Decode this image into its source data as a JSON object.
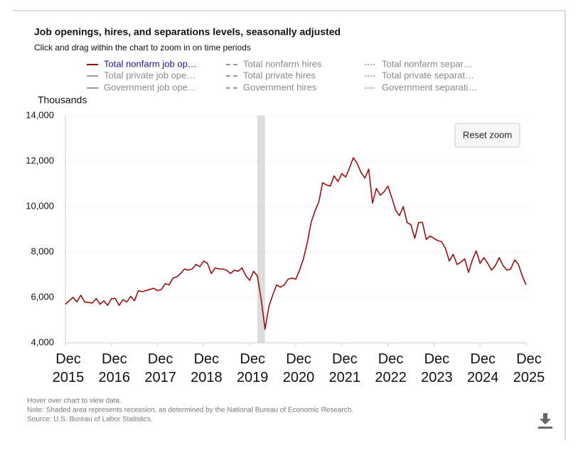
{
  "chart_data": {
    "type": "line",
    "title": "Job openings, hires, and separations levels, seasonally adjusted",
    "subtitle": "Click and drag within the chart to zoom in on time periods",
    "y_label": "Thousands",
    "reset_button": "Reset zoom",
    "notes": [
      "Hover over chart to view data.",
      "Note: Shaded area represents recession, as determined by the National Bureau of Economic Research.",
      "Source: U.S. Bureau of Labor Statistics."
    ],
    "recession": {
      "start": "2020-02",
      "end": "2020-04"
    },
    "grid": true,
    "ylim": [
      4000,
      14000
    ],
    "yticks": [
      {
        "value": 4000,
        "label": "4,000"
      },
      {
        "value": 6000,
        "label": "6,000"
      },
      {
        "value": 8000,
        "label": "8,000"
      },
      {
        "value": 10000,
        "label": "10,000"
      },
      {
        "value": 12000,
        "label": "12,000"
      },
      {
        "value": 14000,
        "label": "14,000"
      }
    ],
    "xlim": [
      "2015-12",
      "2025-12"
    ],
    "xticks": [
      {
        "value": "2015-12",
        "label": "Dec 2015"
      },
      {
        "value": "2016-12",
        "label": "Dec 2016"
      },
      {
        "value": "2017-12",
        "label": "Dec 2017"
      },
      {
        "value": "2018-12",
        "label": "Dec 2018"
      },
      {
        "value": "2019-12",
        "label": "Dec 2019"
      },
      {
        "value": "2020-12",
        "label": "Dec 2020"
      },
      {
        "value": "2021-12",
        "label": "Dec 2021"
      },
      {
        "value": "2022-12",
        "label": "Dec 2022"
      },
      {
        "value": "2023-12",
        "label": "Dec 2023"
      },
      {
        "value": "2024-12",
        "label": "Dec 2024"
      },
      {
        "value": "2025-12",
        "label": "Dec 2025"
      }
    ],
    "x": [
      "2015-12",
      "2016-01",
      "2016-02",
      "2016-03",
      "2016-04",
      "2016-05",
      "2016-06",
      "2016-07",
      "2016-08",
      "2016-09",
      "2016-10",
      "2016-11",
      "2016-12",
      "2017-01",
      "2017-02",
      "2017-03",
      "2017-04",
      "2017-05",
      "2017-06",
      "2017-07",
      "2017-08",
      "2017-09",
      "2017-10",
      "2017-11",
      "2017-12",
      "2018-01",
      "2018-02",
      "2018-03",
      "2018-04",
      "2018-05",
      "2018-06",
      "2018-07",
      "2018-08",
      "2018-09",
      "2018-10",
      "2018-11",
      "2018-12",
      "2019-01",
      "2019-02",
      "2019-03",
      "2019-04",
      "2019-05",
      "2019-06",
      "2019-07",
      "2019-08",
      "2019-09",
      "2019-10",
      "2019-11",
      "2019-12",
      "2020-01",
      "2020-02",
      "2020-03",
      "2020-04",
      "2020-05",
      "2020-06",
      "2020-07",
      "2020-08",
      "2020-09",
      "2020-10",
      "2020-11",
      "2020-12",
      "2021-01",
      "2021-02",
      "2021-03",
      "2021-04",
      "2021-05",
      "2021-06",
      "2021-07",
      "2021-08",
      "2021-09",
      "2021-10",
      "2021-11",
      "2021-12",
      "2022-01",
      "2022-02",
      "2022-03",
      "2022-04",
      "2022-05",
      "2022-06",
      "2022-07",
      "2022-08",
      "2022-09",
      "2022-10",
      "2022-11",
      "2022-12",
      "2023-01",
      "2023-02",
      "2023-03",
      "2023-04",
      "2023-05",
      "2023-06",
      "2023-07",
      "2023-08",
      "2023-09",
      "2023-10",
      "2023-11",
      "2023-12",
      "2024-01",
      "2024-02",
      "2024-03",
      "2024-04",
      "2024-05",
      "2024-06",
      "2024-07",
      "2024-08",
      "2024-09",
      "2024-10",
      "2024-11",
      "2024-12",
      "2025-01",
      "2025-02",
      "2025-03",
      "2025-04",
      "2025-05",
      "2025-06",
      "2025-07",
      "2025-08",
      "2025-09",
      "2025-10",
      "2025-11",
      "2025-12"
    ],
    "series": [
      {
        "name": "Total nonfarm job op…",
        "color": "#9a0f0f",
        "dash": "solid",
        "visible": true,
        "values": [
          5700,
          5850,
          6000,
          5800,
          6100,
          5800,
          5780,
          5750,
          5950,
          5700,
          5850,
          5650,
          5950,
          5950,
          5650,
          5900,
          5800,
          6050,
          5850,
          6300,
          6250,
          6300,
          6350,
          6400,
          6300,
          6350,
          6600,
          6550,
          6850,
          6900,
          7050,
          7250,
          7200,
          7250,
          7450,
          7350,
          7600,
          7500,
          7050,
          7300,
          7250,
          7250,
          7200,
          7050,
          7200,
          7150,
          7300,
          6950,
          6750,
          7150,
          6950,
          5900,
          4600,
          5600,
          6100,
          6550,
          6450,
          6550,
          6800,
          6850,
          6800,
          7200,
          7700,
          8400,
          9300,
          9800,
          10200,
          11050,
          10950,
          10900,
          11350,
          11100,
          11450,
          11300,
          11700,
          12150,
          11900,
          11500,
          11250,
          11650,
          10150,
          10800,
          10500,
          10650,
          10900,
          10400,
          9850,
          9600,
          10000,
          9300,
          9200,
          8600,
          9300,
          9300,
          8550,
          8700,
          8600,
          8500,
          8450,
          8150,
          7600,
          7900,
          7450,
          7550,
          7700,
          7100,
          7650,
          8050,
          7500,
          7750,
          7500,
          7200,
          7400,
          7750,
          7400,
          7200,
          7250,
          7650,
          7450,
          6950,
          6550
        ]
      },
      {
        "name": "Total nonfarm hires",
        "color": "#999999",
        "dash": "dash",
        "visible": false
      },
      {
        "name": "Total nonfarm separ…",
        "color": "#999999",
        "dash": "dot",
        "visible": false
      },
      {
        "name": "Total private job ope…",
        "color": "#999999",
        "dash": "solid",
        "visible": false
      },
      {
        "name": "Total private hires",
        "color": "#999999",
        "dash": "dash",
        "visible": false
      },
      {
        "name": "Total private separat…",
        "color": "#999999",
        "dash": "dot",
        "visible": false
      },
      {
        "name": "Government job ope…",
        "color": "#999999",
        "dash": "solid",
        "visible": false
      },
      {
        "name": "Government hires",
        "color": "#999999",
        "dash": "dash",
        "visible": false
      },
      {
        "name": "Government separati…",
        "color": "#999999",
        "dash": "dot",
        "visible": false
      }
    ]
  }
}
